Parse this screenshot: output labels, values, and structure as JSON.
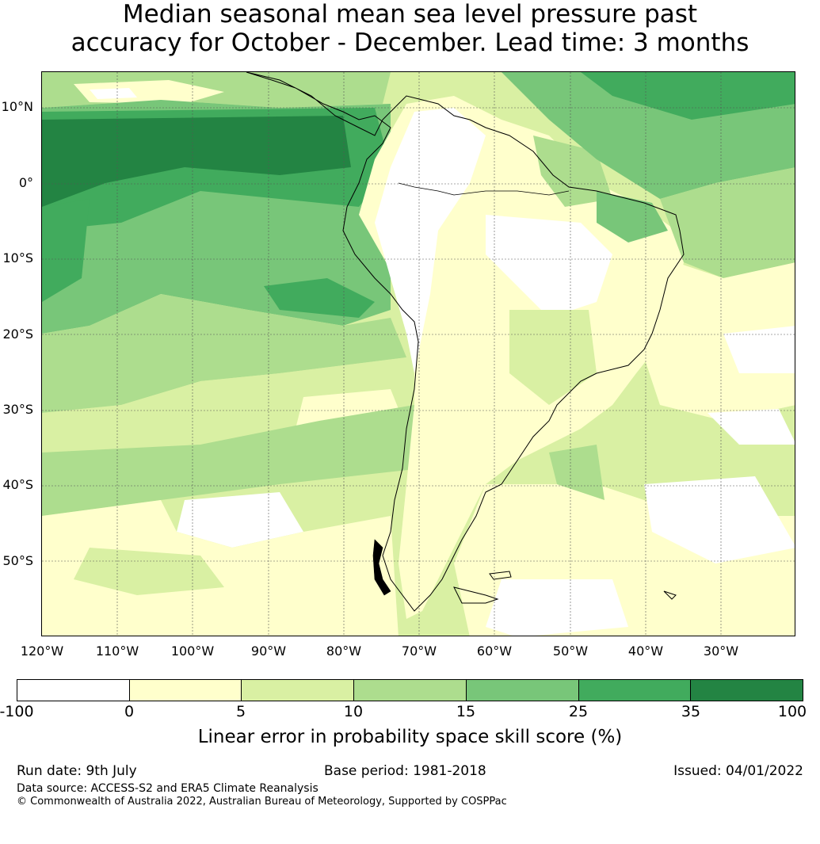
{
  "title": {
    "line1": "Median seasonal mean sea level pressure past",
    "line2": "accuracy for October - December. Lead time: 3 months"
  },
  "map": {
    "latitude_labels": [
      "10°N",
      "0°",
      "10°S",
      "20°S",
      "30°S",
      "40°S",
      "50°S"
    ],
    "longitude_labels": [
      "120°W",
      "110°W",
      "100°W",
      "90°W",
      "80°W",
      "70°W",
      "60°W",
      "50°W",
      "40°W",
      "30°W"
    ],
    "extent": {
      "lon_min": -120,
      "lon_max": -20,
      "lat_min": -60,
      "lat_max": 15
    },
    "coastline": "South America"
  },
  "legend": {
    "ticks": [
      "-100",
      "0",
      "5",
      "10",
      "15",
      "25",
      "35",
      "100"
    ],
    "bins": [
      {
        "range": "-100 to 0",
        "color": "#ffffff"
      },
      {
        "range": "0 to 5",
        "color": "#ffffcc"
      },
      {
        "range": "5 to 10",
        "color": "#d9f0a3"
      },
      {
        "range": "10 to 15",
        "color": "#addd8e"
      },
      {
        "range": "15 to 25",
        "color": "#78c679"
      },
      {
        "range": "25 to 35",
        "color": "#41ab5d"
      },
      {
        "range": "35 to 100",
        "color": "#238443"
      }
    ],
    "label": "Linear error in probability space skill score (%)"
  },
  "footer": {
    "run_date": "Run date: 9th July",
    "base_period": "Base period: 1981-2018",
    "issued": "Issued: 04/01/2022",
    "data_source": "Data source: ACCESS-S2 and ERA5 Climate Reanalysis",
    "copyright": "© Commonwealth of Australia 2022, Australian Bureau of Meteorology, Supported by COSPPac"
  }
}
